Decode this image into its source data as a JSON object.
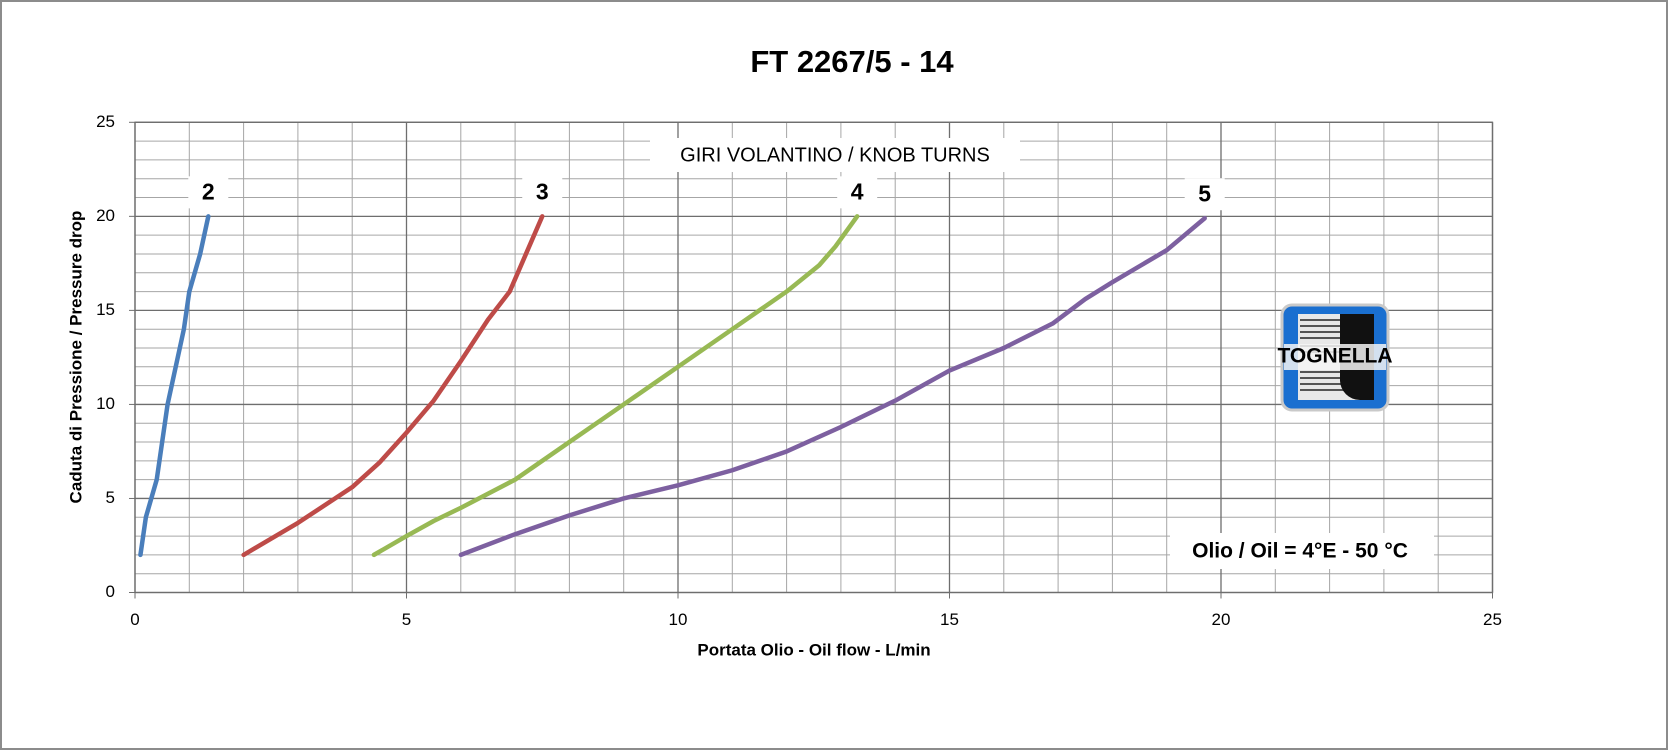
{
  "chart_data": {
    "type": "line",
    "title": "FT 2267/5 - 14",
    "x_label": "Portata Olio - Oil flow -  L/min",
    "y_label": "Caduta di Pressione / Pressure drop",
    "annotation": "GIRI VOLANTINO / KNOB TURNS",
    "note": "Olio / Oil = 4°E - 50 °C",
    "logo_text": "TOGNELLA",
    "xlim": [
      0,
      25
    ],
    "ylim": [
      0,
      25
    ],
    "xticks": [
      0,
      5,
      10,
      15,
      20,
      25
    ],
    "yticks": [
      0,
      5,
      10,
      15,
      20,
      25
    ],
    "xminorticks": [
      1,
      2,
      3,
      4,
      6,
      7,
      8,
      9,
      11,
      12,
      13,
      14,
      16,
      17,
      18,
      19,
      21,
      22,
      23,
      24
    ],
    "yminorticks": [
      1,
      2,
      3,
      4,
      6,
      7,
      8,
      9,
      11,
      12,
      13,
      14,
      16,
      17,
      18,
      19,
      21,
      22,
      23,
      24
    ],
    "grid": true,
    "series": [
      {
        "name": "2",
        "color": "#4a7ebb",
        "x": [
          0.1,
          0.2,
          0.4,
          0.6,
          0.9,
          1.0,
          1.2,
          1.35
        ],
        "values": [
          2,
          4,
          6,
          10,
          14,
          16,
          18,
          20
        ]
      },
      {
        "name": "3",
        "color": "#be4b48",
        "x": [
          2,
          3,
          4,
          4.5,
          5,
          5.5,
          6,
          6.5,
          6.9,
          7.2,
          7.5
        ],
        "values": [
          2,
          3.7,
          5.6,
          6.9,
          8.5,
          10.2,
          12.3,
          14.5,
          16,
          18,
          20
        ]
      },
      {
        "name": "4",
        "color": "#98b954",
        "x": [
          4.4,
          5,
          5.5,
          6,
          7,
          8,
          9,
          10,
          11,
          12,
          12.6,
          12.9,
          13.3
        ],
        "values": [
          2,
          3,
          3.8,
          4.5,
          6,
          8,
          10,
          12,
          14,
          16,
          17.4,
          18.4,
          20
        ]
      },
      {
        "name": "5",
        "color": "#7d60a0",
        "x": [
          6,
          7,
          8,
          9,
          10,
          11,
          12,
          13,
          14,
          15,
          16,
          16.9,
          17.5,
          18,
          19,
          19.7
        ],
        "values": [
          2,
          3.1,
          4.1,
          5,
          5.7,
          6.5,
          7.5,
          8.8,
          10.2,
          11.8,
          13,
          14.3,
          15.6,
          16.5,
          18.2,
          19.9
        ]
      }
    ]
  }
}
